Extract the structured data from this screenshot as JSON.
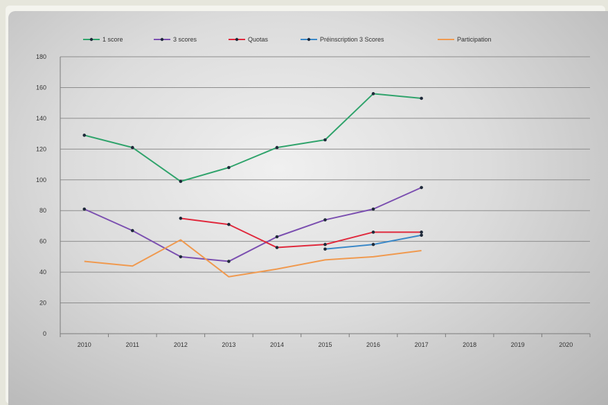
{
  "chart_data": {
    "type": "line",
    "title": "",
    "xlabel": "",
    "ylabel": "",
    "categories": [
      "2010",
      "2011",
      "2012",
      "2013",
      "2014",
      "2015",
      "2016",
      "2017",
      "2018",
      "2019",
      "2020"
    ],
    "ylim": [
      0,
      180
    ],
    "yticks": [
      "0",
      "20",
      "40",
      "60",
      "80",
      "100",
      "120",
      "140",
      "160",
      "180"
    ],
    "grid": true,
    "legend": "top",
    "series": [
      {
        "name": "1 score",
        "color": "#2fa36b",
        "marker": "dot",
        "values": [
          129,
          121,
          99,
          108,
          121,
          126,
          156,
          153,
          null,
          null,
          null
        ]
      },
      {
        "name": "3 scores",
        "color": "#7b4fb0",
        "marker": "dot",
        "values": [
          81,
          67,
          50,
          47,
          63,
          74,
          81,
          95,
          null,
          null,
          null
        ]
      },
      {
        "name": "Quotas",
        "color": "#e0283c",
        "marker": "dot",
        "values": [
          null,
          null,
          75,
          71,
          56,
          58,
          66,
          66,
          null,
          null,
          null
        ]
      },
      {
        "name": "Préinscription 3 Scores",
        "color": "#3a88c8",
        "marker": "dot",
        "values": [
          null,
          null,
          null,
          null,
          null,
          55,
          58,
          64,
          null,
          null,
          null
        ]
      },
      {
        "name": "Participation",
        "color": "#f0994e",
        "marker": "none",
        "values": [
          47,
          44,
          61,
          37,
          42,
          48,
          50,
          54,
          null,
          null,
          null
        ]
      }
    ]
  }
}
